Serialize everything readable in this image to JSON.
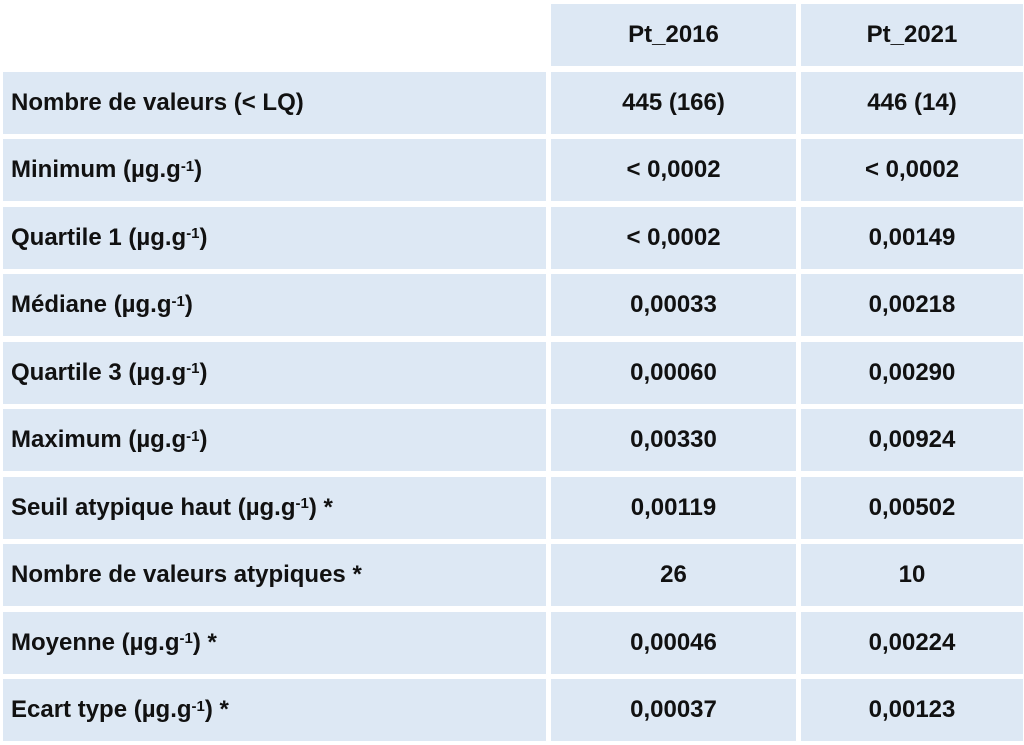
{
  "table": {
    "header": [
      "Pt_2016",
      "Pt_2021"
    ],
    "rows": [
      {
        "label": [
          "Nombre de valeurs (< LQ)"
        ],
        "values": [
          "445 (166)",
          "446 (14)"
        ]
      },
      {
        "label": [
          "Minimum (µg.g",
          "-1",
          ")"
        ],
        "values": [
          "< 0,0002",
          "< 0,0002"
        ]
      },
      {
        "label": [
          "Quartile 1 (µg.g",
          "-1",
          ")"
        ],
        "values": [
          "< 0,0002",
          "0,00149"
        ]
      },
      {
        "label": [
          "Médiane (µg.g",
          "-1",
          ")"
        ],
        "values": [
          "0,00033",
          "0,00218"
        ]
      },
      {
        "label": [
          "Quartile 3 (µg.g",
          "-1",
          ")"
        ],
        "values": [
          "0,00060",
          "0,00290"
        ]
      },
      {
        "label": [
          "Maximum (µg.g",
          "-1",
          ")"
        ],
        "values": [
          "0,00330",
          "0,00924"
        ]
      },
      {
        "label": [
          "Seuil atypique haut (µg.g",
          "-1",
          ") *"
        ],
        "values": [
          "0,00119",
          "0,00502"
        ]
      },
      {
        "label": [
          "Nombre de valeurs atypiques *"
        ],
        "values": [
          "26",
          "10"
        ]
      },
      {
        "label": [
          "Moyenne (µg.g",
          "-1",
          ") *"
        ],
        "values": [
          "0,00046",
          "0,00224"
        ]
      },
      {
        "label": [
          "Ecart type (µg.g",
          "-1",
          ") *"
        ],
        "values": [
          "0,00037",
          "0,00123"
        ]
      }
    ]
  }
}
